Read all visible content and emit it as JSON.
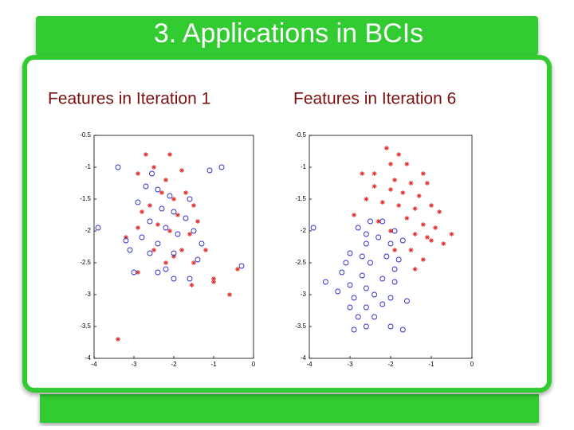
{
  "title": "3. Applications in BCIs",
  "chart_data": [
    {
      "type": "scatter",
      "title": "Features in Iteration 1",
      "xlim": [
        -4,
        0
      ],
      "ylim": [
        -4,
        -0.5
      ],
      "xticks": [
        -4,
        -3,
        -2,
        -1,
        0
      ],
      "yticks": [
        -0.5,
        -1,
        -1.5,
        -2,
        -2.5,
        -3,
        -3.5,
        -4
      ],
      "series": [
        {
          "color": "#e02828",
          "marker": "asterisk",
          "x": [
            -2.7,
            -2.1,
            -2.5,
            -2.2,
            -1.8,
            -2.9,
            -2.3,
            -1.7,
            -2.0,
            -1.5,
            -2.6,
            -2.8,
            -1.9,
            -1.4,
            -2.4,
            -2.1,
            -1.6,
            -2.9,
            -3.2,
            -2.5,
            -2.0,
            -1.8,
            -1.2,
            -2.2,
            -1.5,
            -0.4,
            -1.0,
            -1.55,
            -1.0,
            -0.6,
            -3.4,
            -2.9
          ],
          "values": [
            -0.8,
            -0.8,
            -1.0,
            -1.2,
            -1.05,
            -1.1,
            -1.4,
            -1.4,
            -1.5,
            -1.6,
            -1.6,
            -1.7,
            -1.75,
            -1.85,
            -1.9,
            -2.0,
            -2.05,
            -1.95,
            -2.1,
            -2.3,
            -2.4,
            -2.3,
            -2.3,
            -2.5,
            -2.5,
            -2.6,
            -2.75,
            -2.85,
            -2.8,
            -3.0,
            -3.7,
            -2.65
          ]
        },
        {
          "color": "#2a2ac8",
          "marker": "circle",
          "x": [
            -3.4,
            -1.1,
            -0.8,
            -2.7,
            -2.4,
            -2.1,
            -1.6,
            -2.9,
            -2.3,
            -2.0,
            -1.7,
            -2.6,
            -2.2,
            -1.9,
            -1.5,
            -2.8,
            -3.2,
            -3.9,
            -2.4,
            -1.3,
            -2.6,
            -2.0,
            -1.4,
            -2.2,
            -0.3,
            -2.4,
            -2.0,
            -1.6,
            -3.0,
            -3.1,
            -2.55
          ],
          "values": [
            -1.0,
            -1.05,
            -1.0,
            -1.3,
            -1.35,
            -1.45,
            -1.5,
            -1.55,
            -1.65,
            -1.7,
            -1.8,
            -1.85,
            -1.95,
            -2.05,
            -2.0,
            -2.1,
            -2.15,
            -1.95,
            -2.2,
            -2.2,
            -2.35,
            -2.35,
            -2.45,
            -2.6,
            -2.55,
            -2.65,
            -2.75,
            -2.75,
            -2.65,
            -2.3,
            -1.1
          ]
        }
      ]
    },
    {
      "type": "scatter",
      "title": "Features in Iteration 6",
      "xlim": [
        -4,
        0
      ],
      "ylim": [
        -4,
        -0.5
      ],
      "xticks": [
        -4,
        -3,
        -2,
        -1,
        0
      ],
      "yticks": [
        -0.5,
        -1,
        -1.5,
        -2,
        -2.5,
        -3,
        -3.5,
        -4
      ],
      "series": [
        {
          "color": "#e02828",
          "marker": "asterisk",
          "x": [
            -2.1,
            -1.8,
            -2.0,
            -1.6,
            -2.7,
            -2.4,
            -1.2,
            -1.9,
            -1.5,
            -1.1,
            -2.4,
            -2.0,
            -1.7,
            -1.3,
            -2.6,
            -2.2,
            -1.8,
            -1.4,
            -1.0,
            -0.8,
            -2.9,
            -2.3,
            -1.6,
            -1.2,
            -0.9,
            -0.5,
            -1.4,
            -2.0,
            -1.0,
            -1.5,
            -1.9,
            -1.2,
            -1.4,
            -1.1,
            -0.7
          ],
          "values": [
            -0.7,
            -0.8,
            -0.95,
            -0.95,
            -1.1,
            -1.1,
            -1.1,
            -1.2,
            -1.25,
            -1.25,
            -1.3,
            -1.35,
            -1.4,
            -1.45,
            -1.5,
            -1.55,
            -1.6,
            -1.65,
            -1.6,
            -1.7,
            -1.75,
            -1.85,
            -1.8,
            -1.9,
            -1.95,
            -2.05,
            -2.05,
            -2.0,
            -2.15,
            -2.3,
            -2.3,
            -2.45,
            -2.6,
            -2.1,
            -2.2
          ]
        },
        {
          "color": "#2a2ac8",
          "marker": "circle",
          "x": [
            -3.9,
            -2.8,
            -2.5,
            -2.2,
            -2.6,
            -2.3,
            -1.9,
            -2.6,
            -2.0,
            -1.7,
            -3.0,
            -2.7,
            -2.1,
            -1.8,
            -3.1,
            -2.5,
            -1.9,
            -3.2,
            -2.7,
            -2.2,
            -3.0,
            -2.6,
            -1.9,
            -3.3,
            -2.9,
            -2.4,
            -2.0,
            -3.0,
            -2.6,
            -2.2,
            -2.8,
            -2.4,
            -2.9,
            -2.6,
            -2.0,
            -1.7,
            -1.6,
            -3.6
          ],
          "values": [
            -1.95,
            -1.95,
            -1.85,
            -1.85,
            -2.05,
            -2.1,
            -2.0,
            -2.2,
            -2.2,
            -2.15,
            -2.35,
            -2.4,
            -2.4,
            -2.45,
            -2.5,
            -2.5,
            -2.6,
            -2.65,
            -2.7,
            -2.75,
            -2.85,
            -2.9,
            -2.8,
            -2.95,
            -3.05,
            -3.0,
            -3.05,
            -3.2,
            -3.2,
            -3.15,
            -3.35,
            -3.35,
            -3.55,
            -3.5,
            -3.5,
            -3.55,
            -3.1,
            -2.8
          ]
        }
      ]
    }
  ]
}
